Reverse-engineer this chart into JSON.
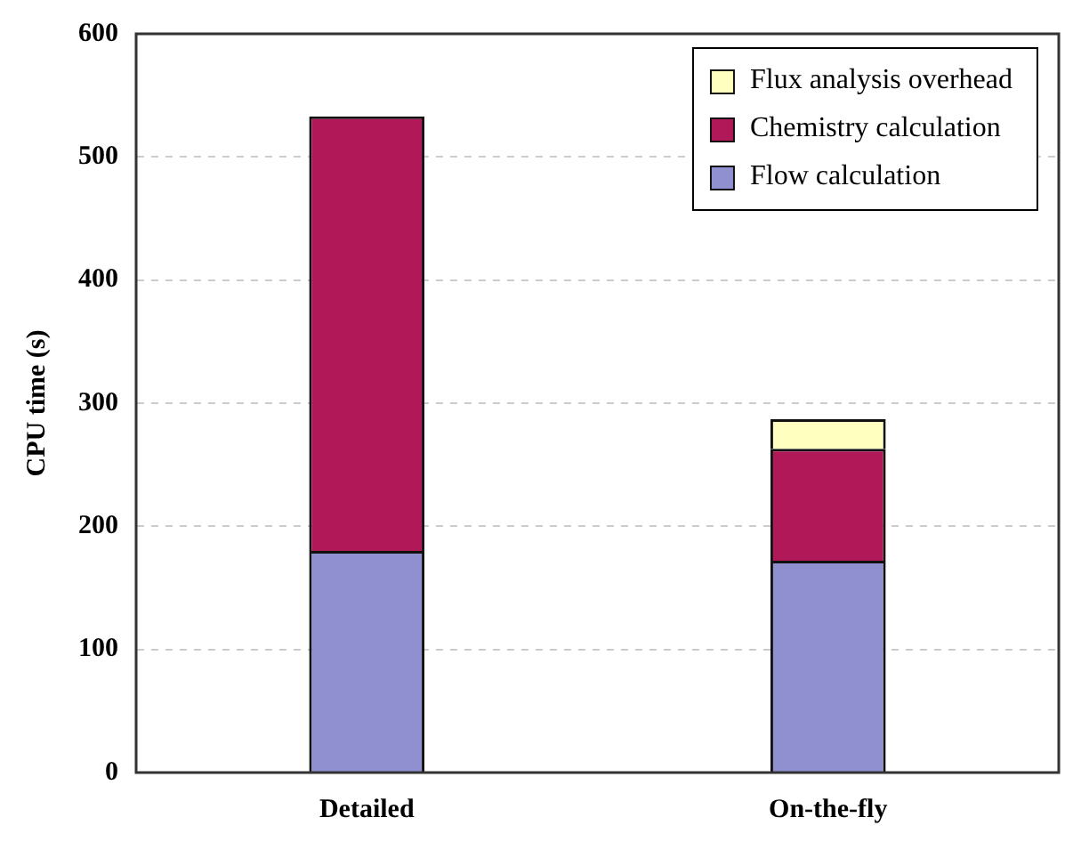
{
  "chart_data": {
    "type": "bar",
    "stacked": true,
    "ylabel": "CPU time (s)",
    "categories": [
      "Detailed",
      "On-the-fly"
    ],
    "series": [
      {
        "name": "Flow calculation",
        "color": "#9090d0",
        "values": [
          180,
          172
        ]
      },
      {
        "name": "Chemistry calculation",
        "color": "#b01858",
        "values": [
          353,
          91
        ]
      },
      {
        "name": "Flux analysis overhead",
        "color": "#ffffc0",
        "values": [
          null,
          24
        ]
      }
    ],
    "ylim": [
      0,
      600
    ],
    "yticks": [
      0,
      100,
      200,
      300,
      400,
      500,
      600
    ],
    "grid": "y",
    "legend": "top right"
  }
}
